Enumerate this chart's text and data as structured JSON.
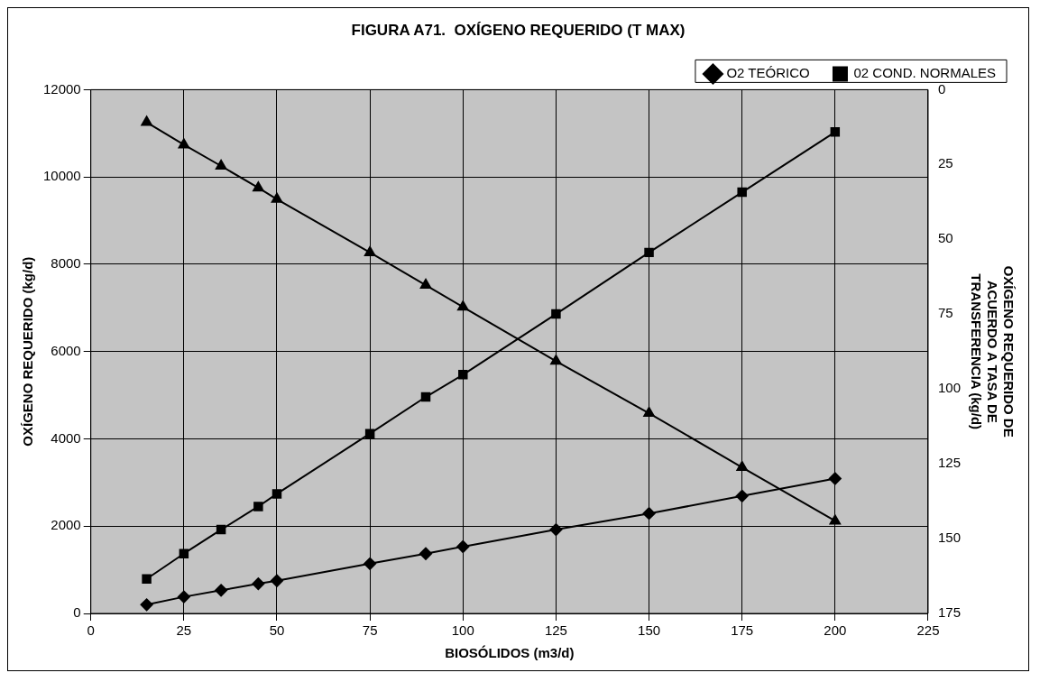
{
  "chart_data": {
    "type": "line",
    "title": "FIGURA A71.  OXÍGENO REQUERIDO (T MAX)",
    "xlabel": "BIOSÓLIDOS (m3/d)",
    "ylabel": "OXÍGENO REQUERIDO (kg/d)",
    "y2label": "OXÍGENO REQUERIDO DE ACUERDO A TASA DE TRANSFERENCIA (kg/d)",
    "x": [
      15,
      25,
      35,
      45,
      50,
      75,
      90,
      100,
      125,
      150,
      175,
      200
    ],
    "series": [
      {
        "name": "O2 TEÓRICO",
        "color": "#000000",
        "marker": "diamond",
        "values": [
          200,
          380,
          530,
          680,
          750,
          1140,
          1370,
          1530,
          1920,
          2290,
          2690,
          3090
        ]
      },
      {
        "name": "02 COND. NORMALES",
        "color": "#000000",
        "marker": "square",
        "values": [
          790,
          1370,
          1920,
          2450,
          2740,
          4120,
          4960,
          5470,
          6860,
          8270,
          9650,
          11030
        ]
      },
      {
        "color": "#000000",
        "marker": "triangle",
        "axis": "y2",
        "values": [
          10.9,
          18.4,
          25.5,
          32.8,
          36.6,
          54.4,
          65.3,
          72.6,
          90.7,
          108.1,
          126.2,
          144.1
        ]
      }
    ],
    "xlim": [
      0,
      225
    ],
    "xticks": [
      0,
      25,
      50,
      75,
      100,
      125,
      150,
      175,
      200,
      225
    ],
    "ylim": [
      0,
      12000
    ],
    "yticks": [
      0,
      2000,
      4000,
      6000,
      8000,
      10000,
      12000
    ],
    "y2lim": [
      175,
      0
    ],
    "y2ticks": [
      0,
      25,
      50,
      75,
      100,
      125,
      150,
      175
    ],
    "grid": true,
    "legend": "top right",
    "line_style": "solid"
  }
}
